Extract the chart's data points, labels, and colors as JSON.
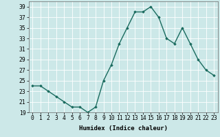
{
  "x": [
    0,
    1,
    2,
    3,
    4,
    5,
    6,
    7,
    8,
    9,
    10,
    11,
    12,
    13,
    14,
    15,
    16,
    17,
    18,
    19,
    20,
    21,
    22,
    23
  ],
  "y": [
    24,
    24,
    23,
    22,
    21,
    20,
    20,
    19,
    20,
    25,
    28,
    32,
    35,
    38,
    38,
    39,
    37,
    33,
    32,
    35,
    32,
    29,
    27,
    26
  ],
  "line_color": "#1a6b5e",
  "marker": "D",
  "marker_size": 1.8,
  "line_width": 1.0,
  "xlabel": "Humidex (Indice chaleur)",
  "xlim": [
    -0.5,
    23.5
  ],
  "ylim": [
    19,
    40
  ],
  "yticks": [
    19,
    21,
    23,
    25,
    27,
    29,
    31,
    33,
    35,
    37,
    39
  ],
  "xticks": [
    0,
    1,
    2,
    3,
    4,
    5,
    6,
    7,
    8,
    9,
    10,
    11,
    12,
    13,
    14,
    15,
    16,
    17,
    18,
    19,
    20,
    21,
    22,
    23
  ],
  "bg_color": "#cce8e8",
  "grid_color": "#ffffff",
  "xlabel_fontsize": 6.5,
  "tick_fontsize": 5.8
}
